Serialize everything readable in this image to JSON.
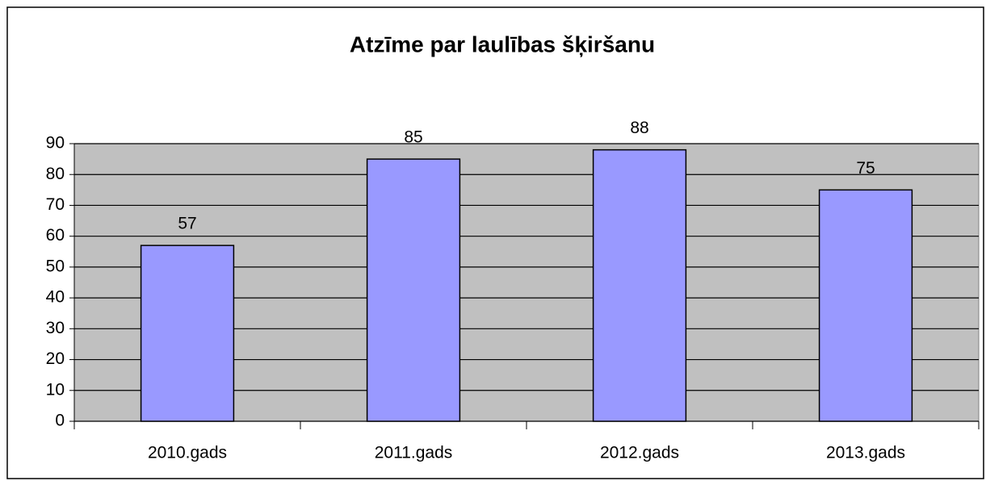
{
  "chart_data": {
    "type": "bar",
    "title": "Atzīme par laulības šķiršanu",
    "categories": [
      "2010.gads",
      "2011.gads",
      "2012.gads",
      "2013.gads"
    ],
    "values": [
      57,
      85,
      88,
      75
    ],
    "color": "#9999ff",
    "plot_background": "#c0c0c0",
    "ylim": [
      0,
      90
    ],
    "yticks": [
      0,
      10,
      20,
      30,
      40,
      50,
      60,
      70,
      80,
      90
    ],
    "grid": true
  }
}
